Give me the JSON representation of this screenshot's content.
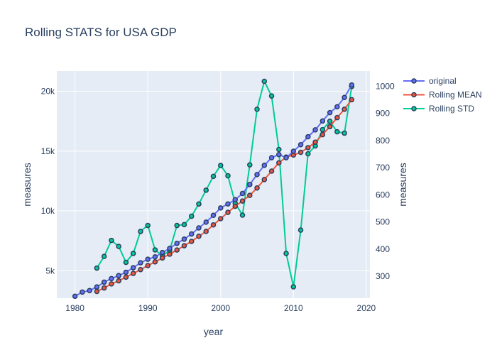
{
  "chart_data": {
    "type": "line",
    "title": "Rolling STATS for USA GDP",
    "xlabel": "year",
    "ylabel_left": "measures",
    "ylabel_right": "measures",
    "x_range": [
      1977.5,
      2020.5
    ],
    "x_ticks": [
      1980,
      1990,
      2000,
      2010,
      2020
    ],
    "y_left_range": [
      2700,
      21700
    ],
    "y_left_ticks": [
      5000,
      10000,
      15000,
      20000
    ],
    "y_left_tick_labels": [
      "5k",
      "10k",
      "15k",
      "20k"
    ],
    "y_right_range": [
      219,
      1056
    ],
    "y_right_ticks": [
      300,
      400,
      500,
      600,
      700,
      800,
      900,
      1000
    ],
    "legend_position": "top-right",
    "grid": true,
    "series": [
      {
        "name": "original",
        "axis": "left",
        "color": "#636efa",
        "x": [
          1980,
          1981,
          1982,
          1983,
          1984,
          1985,
          1986,
          1987,
          1988,
          1989,
          1990,
          1991,
          1992,
          1993,
          1994,
          1995,
          1996,
          1997,
          1998,
          1999,
          2000,
          2001,
          2002,
          2003,
          2004,
          2005,
          2006,
          2007,
          2008,
          2009,
          2010,
          2011,
          2012,
          2013,
          2014,
          2015,
          2016,
          2017,
          2018
        ],
        "values": [
          2860,
          3210,
          3340,
          3640,
          4040,
          4340,
          4590,
          4870,
          5250,
          5660,
          5960,
          6160,
          6520,
          6860,
          7290,
          7640,
          8070,
          8580,
          9060,
          9630,
          10250,
          10580,
          10940,
          11460,
          12210,
          13040,
          13810,
          14450,
          14710,
          14450,
          14990,
          15540,
          16200,
          16780,
          17520,
          18220,
          18710,
          19490,
          20530
        ]
      },
      {
        "name": "Rolling MEAN",
        "axis": "left",
        "color": "#ef553b",
        "x": [
          1983,
          1984,
          1985,
          1986,
          1987,
          1988,
          1989,
          1990,
          1991,
          1992,
          1993,
          1994,
          1995,
          1996,
          1997,
          1998,
          1999,
          2000,
          2001,
          2002,
          2003,
          2004,
          2005,
          2006,
          2007,
          2008,
          2009,
          2010,
          2011,
          2012,
          2013,
          2014,
          2015,
          2016,
          2017,
          2018
        ],
        "values": [
          3263,
          3558,
          3895,
          4153,
          4460,
          4775,
          5090,
          5430,
          5740,
          6060,
          6380,
          6730,
          7090,
          7450,
          7880,
          8290,
          8830,
          9350,
          9880,
          10390,
          10830,
          11300,
          11920,
          12620,
          13330,
          14020,
          14500,
          14670,
          14900,
          15290,
          15750,
          16380,
          17050,
          17800,
          18500,
          19300
        ]
      },
      {
        "name": "Rolling STD",
        "axis": "right",
        "color": "#00cc96",
        "x": [
          1983,
          1984,
          1985,
          1986,
          1987,
          1988,
          1989,
          1990,
          1991,
          1992,
          1993,
          1994,
          1995,
          1996,
          1997,
          1998,
          1999,
          2000,
          2001,
          2002,
          2003,
          2004,
          2005,
          2006,
          2007,
          2008,
          2009,
          2010,
          2011,
          2012,
          2013,
          2014,
          2015,
          2016,
          2017,
          2018
        ],
        "values": [
          330,
          373,
          432,
          410,
          351,
          384,
          465,
          487,
          397,
          375,
          395,
          487,
          490,
          521,
          566,
          617,
          668,
          708,
          670,
          569,
          525,
          710,
          915,
          1018,
          964,
          767,
          384,
          261,
          470,
          751,
          780,
          840,
          871,
          832,
          827,
          999
        ]
      }
    ]
  }
}
